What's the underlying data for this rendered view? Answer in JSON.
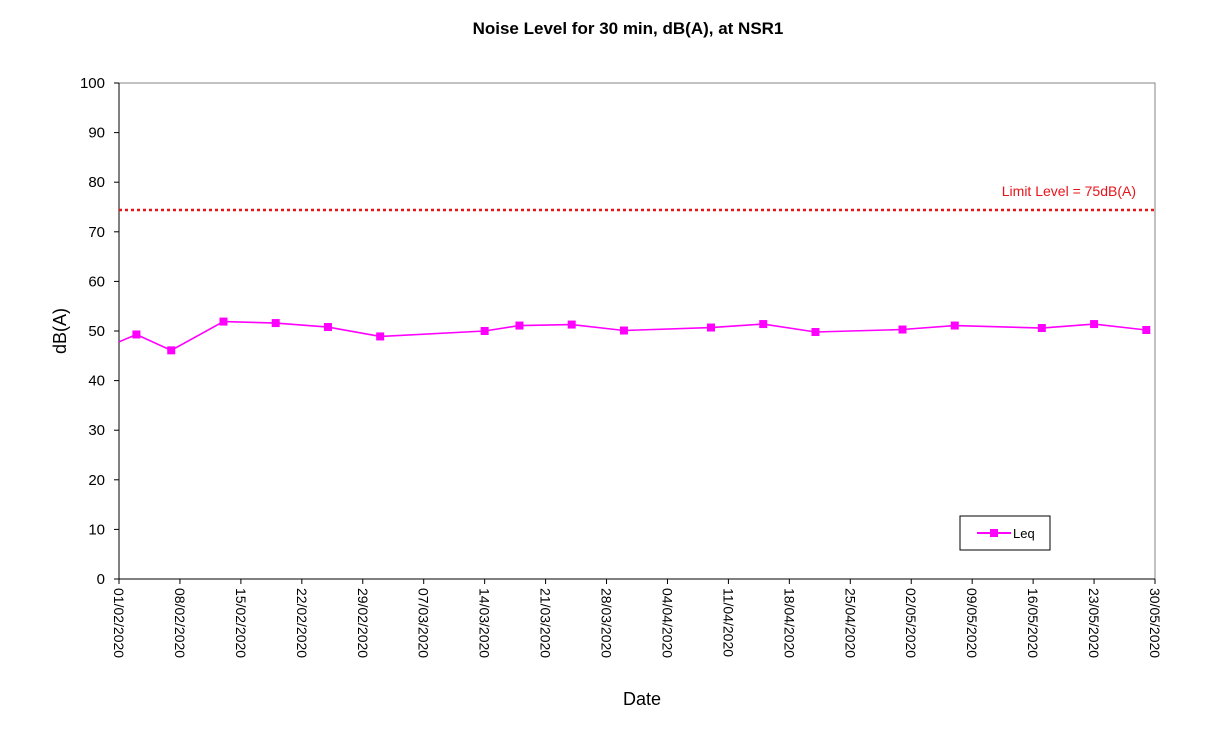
{
  "chart_data": {
    "type": "line",
    "title": "Noise Level for 30 min, dB(A), at NSR1",
    "xlabel": "Date",
    "ylabel": "dB(A)",
    "ylim": [
      0,
      100
    ],
    "yticks": [
      0,
      10,
      20,
      30,
      40,
      50,
      60,
      70,
      80,
      90,
      100
    ],
    "x_axis_type": "date",
    "xlim": [
      "2020-02-01",
      "2020-05-30"
    ],
    "xtick_labels": [
      "01/02/2020",
      "08/02/2020",
      "15/02/2020",
      "22/02/2020",
      "29/02/2020",
      "07/03/2020",
      "14/03/2020",
      "21/03/2020",
      "28/03/2020",
      "04/04/2020",
      "11/04/2020",
      "18/04/2020",
      "25/04/2020",
      "02/05/2020",
      "09/05/2020",
      "16/05/2020",
      "23/05/2020",
      "30/05/2020"
    ],
    "grid": false,
    "legend_position": "bottom-right",
    "limit_line": {
      "value": 75,
      "label": "Limit Level = 75dB(A)",
      "color": "#e8141b",
      "style": "dotted"
    },
    "series": [
      {
        "name": "Leq",
        "color": "#ff00ff",
        "marker": "square",
        "x": [
          "2020-02-01",
          "2020-02-03",
          "2020-02-07",
          "2020-02-13",
          "2020-02-19",
          "2020-02-25",
          "2020-03-02",
          "2020-03-14",
          "2020-03-18",
          "2020-03-24",
          "2020-03-30",
          "2020-04-09",
          "2020-04-15",
          "2020-04-21",
          "2020-05-01",
          "2020-05-07",
          "2020-05-17",
          "2020-05-23",
          "2020-05-29"
        ],
        "values": [
          47.8,
          49.3,
          46.1,
          51.9,
          51.6,
          50.8,
          48.9,
          50.0,
          51.1,
          51.3,
          50.1,
          50.7,
          51.4,
          49.8,
          50.3,
          51.1,
          50.6,
          51.4,
          50.2
        ]
      }
    ]
  }
}
